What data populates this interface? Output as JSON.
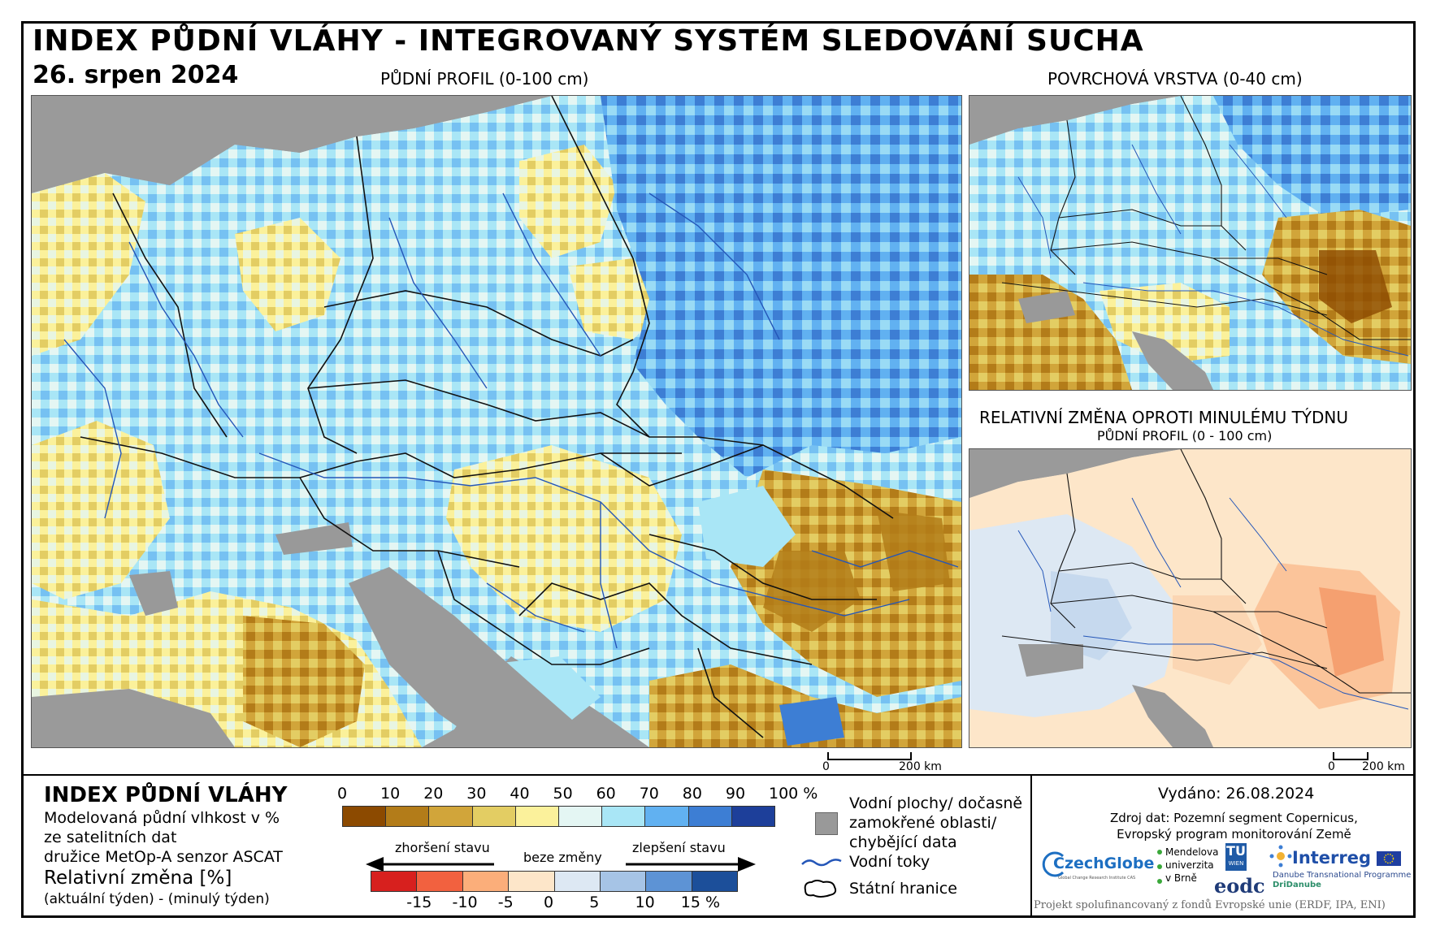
{
  "header": {
    "title": "INDEX PŮDNÍ VLÁHY - INTEGROVANÝ SYSTÉM SLEDOVÁNÍ SUCHA",
    "date": "26. srpen 2024"
  },
  "panels": {
    "main_label": "PŮDNÍ PROFIL (0-100 cm)",
    "surface_label": "POVRCHOVÁ VRSTVA (0-40 cm)",
    "change_label": "RELATIVNÍ ZMĚNA OPROTI MINULÉMU TÝDNU",
    "change_sublabel": "PŮDNÍ PROFIL (0 - 100 cm)"
  },
  "scalebar": {
    "start": "0",
    "end": "200 km"
  },
  "legend": {
    "title": "INDEX PŮDNÍ VLÁHY",
    "desc_line1": "Modelovaná půdní vlhkost v %",
    "desc_line2": "ze satelitních dat",
    "desc_line3": "družice MetOp-A senzor ASCAT",
    "change_title": "Relativní změna [%]",
    "change_desc": "(aktuální týden) - (minulý týden)",
    "moisture_ticks": [
      "0",
      "10",
      "20",
      "30",
      "40",
      "50",
      "60",
      "70",
      "80",
      "90",
      "100 %"
    ],
    "moisture_colors": [
      "#8c4a00",
      "#b37c19",
      "#d1a53a",
      "#e3cd63",
      "#fbf19b",
      "#e4f6f3",
      "#a9e6f6",
      "#61b1f1",
      "#3d7ed4",
      "#1d3f9a"
    ],
    "change_colors": [
      "#d7201e",
      "#f2613f",
      "#fbae7a",
      "#fde6c9",
      "#dde8f3",
      "#a6c4e6",
      "#5d93d5",
      "#1c4f9a"
    ],
    "change_ticks": [
      "-15",
      "-10",
      "-5",
      "0",
      "5",
      "10",
      "15 %"
    ],
    "worse": "zhoršení stavu",
    "nochange": "beze změny",
    "better": "zlepšení stavu"
  },
  "keys": {
    "water_line1": "Vodní plochy/ dočasně",
    "water_line2": "zamokřené oblasti/",
    "water_line3": "chybějící data",
    "rivers": "Vodní toky",
    "borders": "Státní hranice"
  },
  "info": {
    "issued": "Vydáno: 26.08.2024",
    "source_line1": "Zdroj dat: Pozemní segment Copernicus,",
    "source_line2": "Evropský program monitorování Země",
    "footer": "Projekt spolufinancovaný z fondů Evropské unie (ERDF, IPA, ENI)"
  },
  "logos": {
    "czechglobe": "CzechGlobe",
    "czechglobe_sub": "Global Change Research Institute CAS",
    "mendel_1": "Mendelova",
    "mendel_2": "univerzita",
    "mendel_3": "v Brně",
    "tu": "TU",
    "tu_sub": "WIEN",
    "eodc": "eodc",
    "interreg": "Interreg",
    "interreg_sub1": "Danube Transnational Programme",
    "interreg_sub2": "DriDanube"
  }
}
